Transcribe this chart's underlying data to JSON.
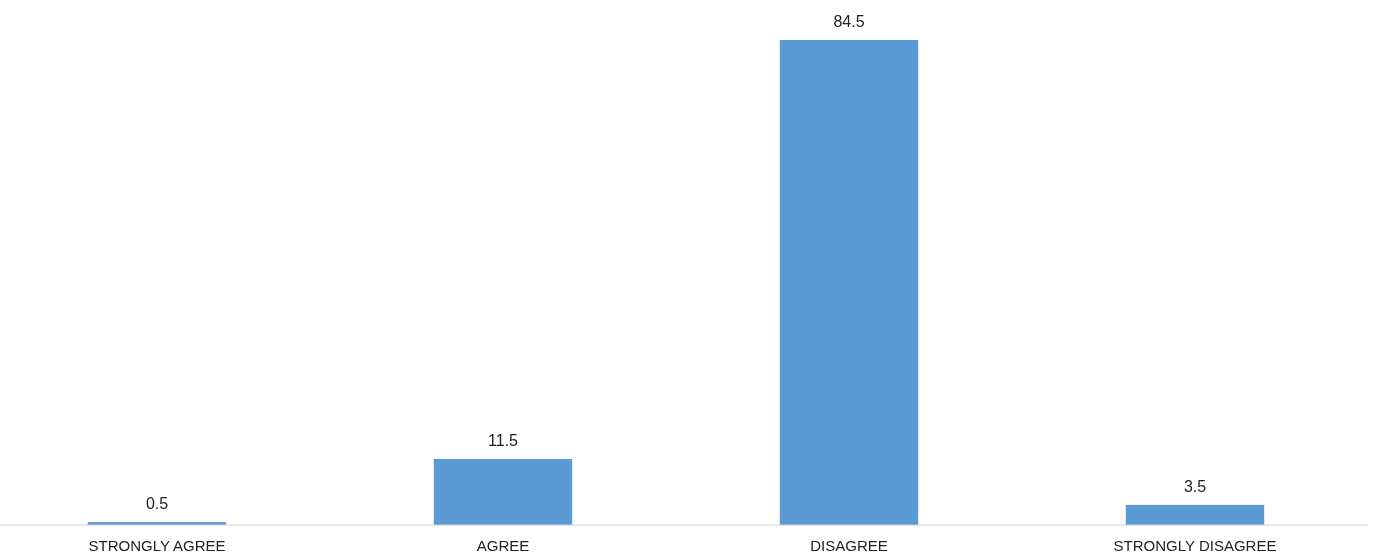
{
  "chart_data": {
    "type": "bar",
    "categories": [
      "STRONGLY AGREE",
      "AGREE",
      "DISAGREE",
      "STRONGLY DISAGREE"
    ],
    "values": [
      0.5,
      11.5,
      84.5,
      3.5
    ],
    "color": "#5b9bd5",
    "data_labels": true
  }
}
